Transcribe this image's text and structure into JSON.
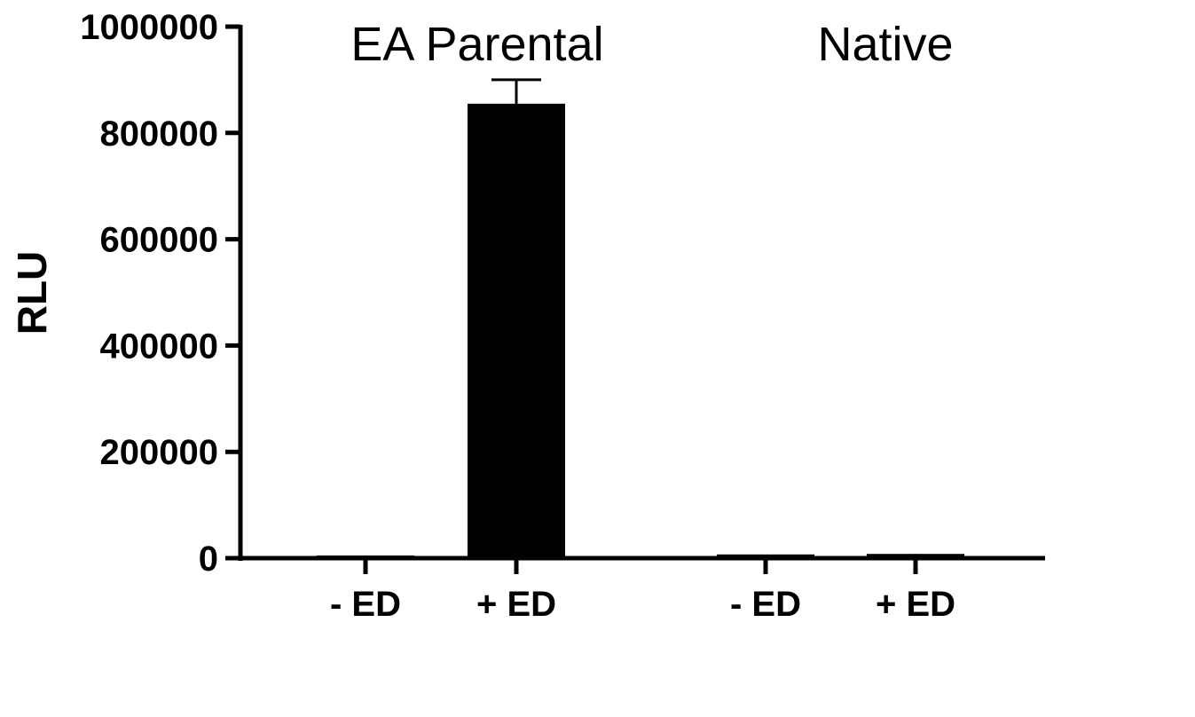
{
  "chart_data": {
    "type": "bar",
    "ylabel": "RLU",
    "xlabel": "",
    "ylim": [
      0,
      1000000
    ],
    "y_ticks": [
      "0",
      "200000",
      "400000",
      "600000",
      "800000",
      "1000000"
    ],
    "y_tick_values": [
      0,
      200000,
      400000,
      600000,
      800000,
      1000000
    ],
    "groups": [
      {
        "label": "EA Parental",
        "categories": [
          "- ED",
          "+ ED"
        ]
      },
      {
        "label": "Native",
        "categories": [
          "- ED",
          "+ ED"
        ]
      }
    ],
    "bars": [
      {
        "group": "EA Parental",
        "category": "- ED",
        "value": 4000,
        "error": 0
      },
      {
        "group": "EA Parental",
        "category": "+ ED",
        "value": 855000,
        "error": 45000
      },
      {
        "group": "Native",
        "category": "- ED",
        "value": 7000,
        "error": 0
      },
      {
        "group": "Native",
        "category": "+ ED",
        "value": 8000,
        "error": 0
      }
    ],
    "bar_color": "#000000",
    "grid": false
  }
}
